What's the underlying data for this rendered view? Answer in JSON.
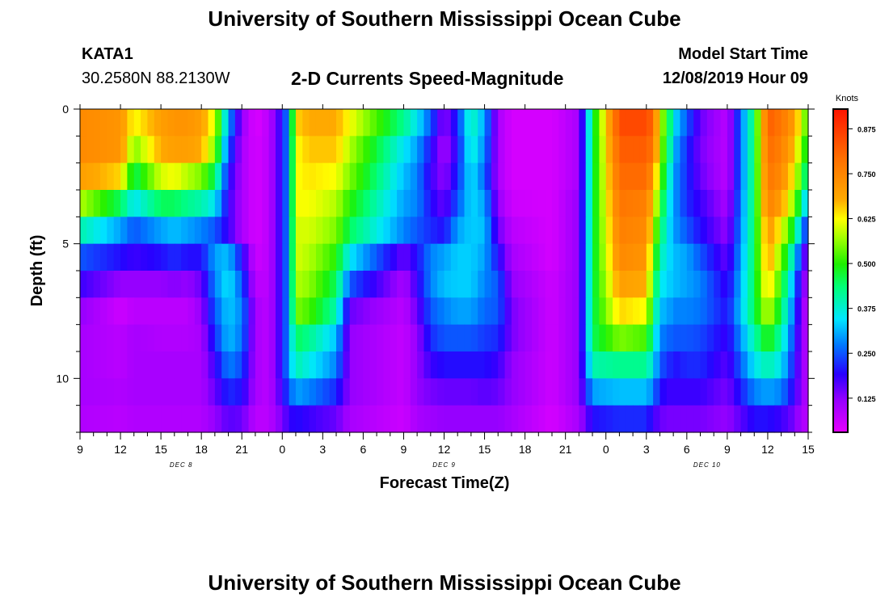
{
  "header": {
    "title": "University of Southern Mississippi Ocean Cube",
    "station_name": "KATA1",
    "coordinates": "30.2580N 88.2130W",
    "chart_title": "2-D Currents Speed-Magnitude",
    "model_start_label": "Model Start Time",
    "model_start_value": "12/08/2019 Hour 09"
  },
  "footer": {
    "title": "University of Southern Mississippi Ocean Cube"
  },
  "chart_data": {
    "type": "heatmap",
    "xlabel": "Forecast Time(Z)",
    "ylabel": "Depth (ft)",
    "x_unit": "forecast hours from 12/08/2019 09Z",
    "xlim": [
      0,
      54
    ],
    "ylim": [
      12,
      0
    ],
    "x_tick_labels": [
      "9",
      "12",
      "15",
      "18",
      "21",
      "0",
      "3",
      "6",
      "9",
      "12",
      "15",
      "18",
      "21",
      "0",
      "3",
      "6",
      "9",
      "12",
      "15"
    ],
    "y_ticks": [
      0,
      5,
      10
    ],
    "y_tick_labels": [
      "0",
      "5",
      "10"
    ],
    "date_labels": [
      {
        "label": "DEC 8",
        "hour": 7.5
      },
      {
        "label": "DEC 9",
        "hour": 27
      },
      {
        "label": "DEC 10",
        "hour": 46.5
      }
    ],
    "colorbar": {
      "label": "Knots",
      "range": [
        0.03,
        0.93
      ],
      "ticks": [
        0.125,
        0.25,
        0.375,
        0.5,
        0.625,
        0.75,
        0.875
      ],
      "tick_labels": [
        "0.125",
        "0.250",
        "0.375",
        "0.500",
        "0.625",
        "0.750",
        "0.875"
      ]
    },
    "depths_ft": [
      0,
      1,
      2,
      3,
      4,
      5,
      6,
      7,
      8,
      9,
      10,
      11
    ],
    "time_keys_hours": [
      0,
      3,
      4,
      6,
      7,
      8,
      9,
      10,
      11,
      12,
      13,
      14,
      15,
      15.5,
      16,
      17,
      19,
      20,
      24,
      25,
      26,
      27,
      28,
      29,
      30,
      31,
      32,
      35,
      37,
      38,
      40,
      42,
      42.5,
      43,
      43.7,
      44,
      45,
      46,
      48,
      50,
      51,
      52,
      53,
      53.5,
      54
    ],
    "speed_knots_by_depth": [
      [
        0.74,
        0.72,
        0.62,
        0.7,
        0.72,
        0.72,
        0.7,
        0.6,
        0.3,
        0.12,
        0.04,
        0.08,
        0.2,
        0.3,
        0.65,
        0.68,
        0.68,
        0.62,
        0.42,
        0.35,
        0.25,
        0.12,
        0.22,
        0.4,
        0.3,
        0.1,
        0.05,
        0.05,
        0.1,
        0.45,
        0.85,
        0.85,
        0.8,
        0.6,
        0.45,
        0.35,
        0.25,
        0.15,
        0.08,
        0.45,
        0.82,
        0.78,
        0.7,
        0.6,
        0.5
      ],
      [
        0.74,
        0.72,
        0.55,
        0.68,
        0.7,
        0.7,
        0.68,
        0.55,
        0.25,
        0.1,
        0.05,
        0.08,
        0.2,
        0.3,
        0.62,
        0.66,
        0.66,
        0.58,
        0.35,
        0.3,
        0.2,
        0.1,
        0.2,
        0.38,
        0.28,
        0.1,
        0.05,
        0.05,
        0.1,
        0.45,
        0.82,
        0.82,
        0.78,
        0.58,
        0.42,
        0.32,
        0.22,
        0.14,
        0.08,
        0.45,
        0.8,
        0.76,
        0.66,
        0.55,
        0.45
      ],
      [
        0.7,
        0.65,
        0.45,
        0.6,
        0.62,
        0.58,
        0.55,
        0.45,
        0.2,
        0.1,
        0.05,
        0.08,
        0.2,
        0.3,
        0.62,
        0.64,
        0.62,
        0.55,
        0.32,
        0.28,
        0.18,
        0.12,
        0.22,
        0.35,
        0.26,
        0.1,
        0.05,
        0.05,
        0.1,
        0.45,
        0.8,
        0.8,
        0.72,
        0.55,
        0.38,
        0.3,
        0.22,
        0.15,
        0.08,
        0.45,
        0.78,
        0.74,
        0.62,
        0.5,
        0.4
      ],
      [
        0.58,
        0.45,
        0.35,
        0.45,
        0.45,
        0.42,
        0.4,
        0.35,
        0.18,
        0.1,
        0.05,
        0.08,
        0.2,
        0.3,
        0.62,
        0.62,
        0.58,
        0.5,
        0.3,
        0.28,
        0.2,
        0.15,
        0.25,
        0.34,
        0.3,
        0.12,
        0.06,
        0.05,
        0.12,
        0.45,
        0.78,
        0.76,
        0.66,
        0.5,
        0.35,
        0.3,
        0.22,
        0.18,
        0.1,
        0.45,
        0.76,
        0.7,
        0.55,
        0.42,
        0.3
      ],
      [
        0.4,
        0.3,
        0.25,
        0.3,
        0.32,
        0.3,
        0.28,
        0.25,
        0.18,
        0.1,
        0.05,
        0.08,
        0.2,
        0.3,
        0.6,
        0.6,
        0.55,
        0.45,
        0.28,
        0.25,
        0.22,
        0.2,
        0.3,
        0.33,
        0.32,
        0.15,
        0.08,
        0.05,
        0.12,
        0.45,
        0.76,
        0.74,
        0.6,
        0.45,
        0.34,
        0.3,
        0.25,
        0.2,
        0.12,
        0.45,
        0.72,
        0.62,
        0.45,
        0.3,
        0.2
      ],
      [
        0.25,
        0.2,
        0.18,
        0.2,
        0.22,
        0.2,
        0.2,
        0.3,
        0.32,
        0.2,
        0.06,
        0.08,
        0.2,
        0.3,
        0.6,
        0.58,
        0.5,
        0.35,
        0.15,
        0.2,
        0.28,
        0.3,
        0.33,
        0.33,
        0.3,
        0.2,
        0.1,
        0.05,
        0.12,
        0.45,
        0.74,
        0.72,
        0.55,
        0.4,
        0.34,
        0.32,
        0.3,
        0.25,
        0.15,
        0.45,
        0.7,
        0.55,
        0.35,
        0.2,
        0.12
      ],
      [
        0.18,
        0.12,
        0.12,
        0.12,
        0.13,
        0.12,
        0.15,
        0.28,
        0.35,
        0.25,
        0.08,
        0.08,
        0.2,
        0.3,
        0.58,
        0.56,
        0.45,
        0.25,
        0.1,
        0.18,
        0.28,
        0.32,
        0.33,
        0.33,
        0.28,
        0.25,
        0.12,
        0.06,
        0.12,
        0.45,
        0.7,
        0.68,
        0.5,
        0.36,
        0.33,
        0.32,
        0.3,
        0.28,
        0.18,
        0.45,
        0.66,
        0.5,
        0.28,
        0.15,
        0.1
      ],
      [
        0.12,
        0.06,
        0.08,
        0.08,
        0.08,
        0.08,
        0.12,
        0.25,
        0.33,
        0.28,
        0.1,
        0.08,
        0.2,
        0.3,
        0.55,
        0.52,
        0.4,
        0.15,
        0.08,
        0.15,
        0.25,
        0.28,
        0.3,
        0.3,
        0.26,
        0.25,
        0.14,
        0.06,
        0.12,
        0.45,
        0.65,
        0.62,
        0.45,
        0.32,
        0.3,
        0.28,
        0.28,
        0.27,
        0.2,
        0.45,
        0.6,
        0.45,
        0.25,
        0.12,
        0.08
      ],
      [
        0.1,
        0.08,
        0.1,
        0.09,
        0.09,
        0.09,
        0.1,
        0.22,
        0.32,
        0.27,
        0.1,
        0.08,
        0.2,
        0.3,
        0.45,
        0.42,
        0.32,
        0.12,
        0.07,
        0.12,
        0.22,
        0.25,
        0.25,
        0.25,
        0.23,
        0.22,
        0.14,
        0.06,
        0.12,
        0.45,
        0.55,
        0.52,
        0.4,
        0.28,
        0.26,
        0.25,
        0.25,
        0.24,
        0.18,
        0.4,
        0.5,
        0.4,
        0.22,
        0.12,
        0.08
      ],
      [
        0.1,
        0.08,
        0.1,
        0.1,
        0.1,
        0.1,
        0.1,
        0.18,
        0.28,
        0.24,
        0.1,
        0.08,
        0.2,
        0.3,
        0.4,
        0.36,
        0.28,
        0.12,
        0.07,
        0.12,
        0.18,
        0.2,
        0.2,
        0.2,
        0.2,
        0.18,
        0.12,
        0.06,
        0.12,
        0.4,
        0.42,
        0.42,
        0.35,
        0.25,
        0.22,
        0.2,
        0.22,
        0.22,
        0.16,
        0.35,
        0.4,
        0.35,
        0.2,
        0.12,
        0.08
      ],
      [
        0.1,
        0.09,
        0.1,
        0.1,
        0.1,
        0.1,
        0.1,
        0.15,
        0.22,
        0.2,
        0.1,
        0.08,
        0.18,
        0.25,
        0.3,
        0.28,
        0.22,
        0.12,
        0.07,
        0.12,
        0.14,
        0.15,
        0.15,
        0.15,
        0.16,
        0.15,
        0.12,
        0.06,
        0.12,
        0.3,
        0.32,
        0.32,
        0.28,
        0.2,
        0.18,
        0.18,
        0.18,
        0.18,
        0.14,
        0.28,
        0.3,
        0.28,
        0.18,
        0.12,
        0.08
      ],
      [
        0.09,
        0.08,
        0.09,
        0.09,
        0.09,
        0.09,
        0.09,
        0.12,
        0.16,
        0.15,
        0.08,
        0.08,
        0.14,
        0.18,
        0.2,
        0.18,
        0.15,
        0.1,
        0.06,
        0.1,
        0.11,
        0.12,
        0.12,
        0.12,
        0.12,
        0.12,
        0.1,
        0.05,
        0.1,
        0.2,
        0.22,
        0.22,
        0.18,
        0.15,
        0.14,
        0.14,
        0.14,
        0.14,
        0.12,
        0.2,
        0.2,
        0.18,
        0.14,
        0.1,
        0.08
      ]
    ]
  }
}
